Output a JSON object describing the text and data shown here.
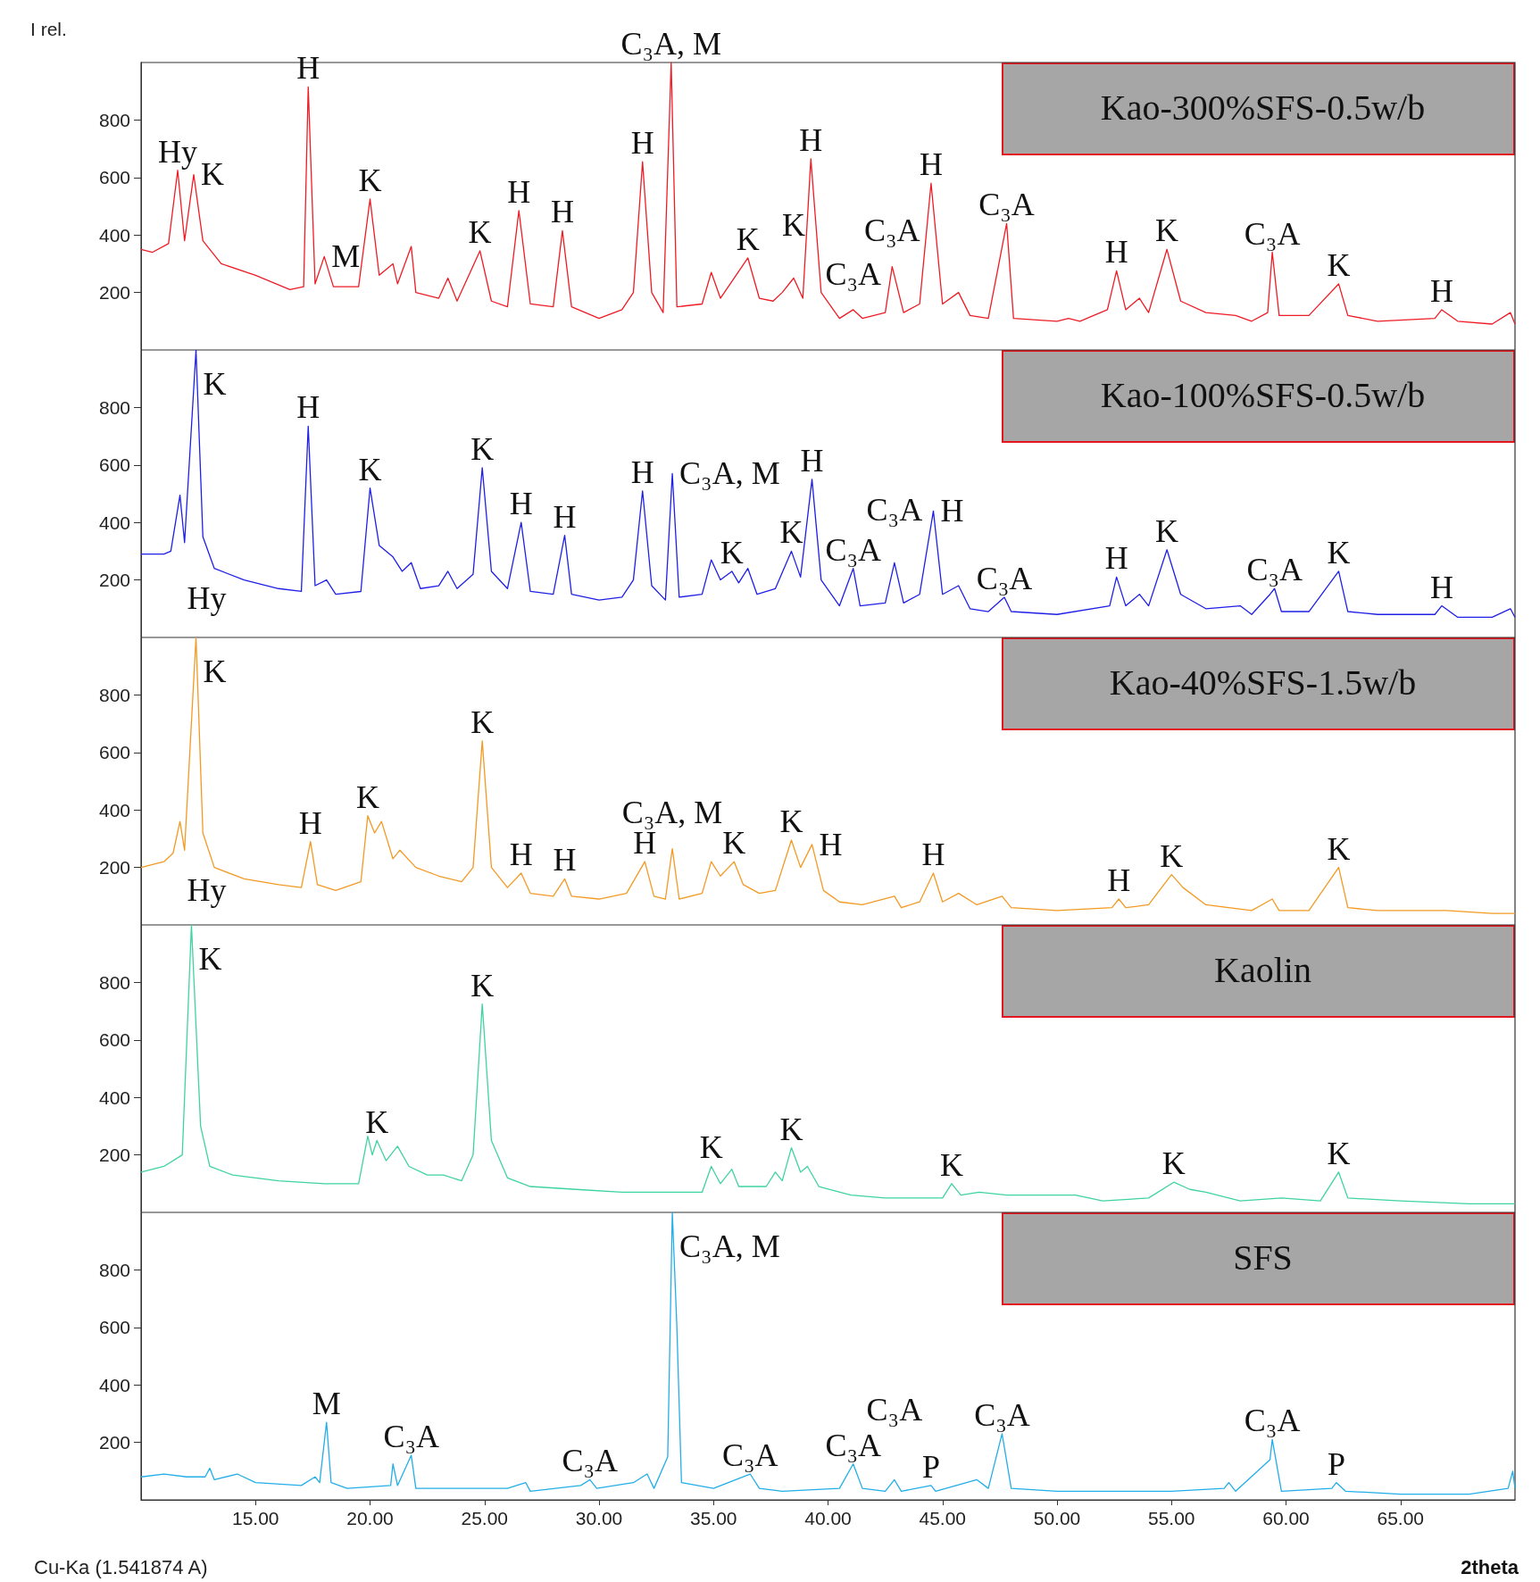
{
  "chart_data": [
    {
      "type": "line",
      "ylabel": "I rel.",
      "xlim": [
        10,
        70
      ],
      "ylim": [
        0,
        1000
      ],
      "yticks": [
        200,
        400,
        600,
        800
      ],
      "tick_labels": "y",
      "legend": "top right",
      "line_style": "solid",
      "series": [
        {
          "name": "Kao-300%SFS-0.5w/b",
          "color": "#ee1c25",
          "x": [
            10,
            10.5,
            11.2,
            11.6,
            11.9,
            12.3,
            12.7,
            13.5,
            15,
            16.5,
            17.1,
            17.3,
            17.6,
            18,
            18.4,
            19.5,
            20,
            20.4,
            21,
            21.2,
            21.8,
            22,
            23,
            23.4,
            23.8,
            24.8,
            25.3,
            26,
            26.5,
            27,
            28,
            28.4,
            28.8,
            30,
            31,
            31.5,
            31.9,
            32.3,
            32.8,
            33.15,
            33.4,
            34.5,
            34.9,
            35.3,
            36.5,
            37,
            37.6,
            38,
            38.5,
            38.9,
            39.25,
            39.7,
            40.5,
            41.1,
            41.5,
            42.5,
            42.8,
            43.3,
            44,
            44.5,
            45,
            45.7,
            46.2,
            47,
            47.8,
            48.1,
            50,
            50.5,
            51,
            52.2,
            52.6,
            53,
            53.6,
            54,
            54.8,
            55.4,
            56.5,
            57.8,
            58.5,
            59.2,
            59.4,
            59.7,
            61,
            62.3,
            62.7,
            64,
            66.5,
            66.8,
            67.5,
            69,
            69.8,
            70
          ],
          "values": [
            350,
            340,
            370,
            625,
            380,
            610,
            380,
            300,
            260,
            210,
            220,
            915,
            230,
            325,
            220,
            220,
            525,
            260,
            300,
            230,
            360,
            200,
            180,
            250,
            170,
            345,
            170,
            150,
            485,
            160,
            150,
            415,
            150,
            110,
            140,
            200,
            655,
            200,
            130,
            1000,
            150,
            160,
            270,
            180,
            320,
            180,
            170,
            200,
            250,
            180,
            665,
            200,
            110,
            140,
            110,
            130,
            290,
            130,
            160,
            580,
            160,
            200,
            120,
            110,
            440,
            110,
            100,
            110,
            100,
            140,
            275,
            140,
            180,
            130,
            350,
            170,
            130,
            120,
            100,
            130,
            340,
            120,
            120,
            230,
            120,
            100,
            110,
            140,
            100,
            90,
            130,
            90
          ]
        }
      ],
      "annotations": [
        {
          "text": "Hy",
          "x": 11.6,
          "y": 625
        },
        {
          "text": "K",
          "x": 12.3,
          "y": 610
        },
        {
          "text": "H",
          "x": 17.3,
          "y": 915
        },
        {
          "text": "M",
          "x": 18,
          "y": 325
        },
        {
          "text": "K",
          "x": 20,
          "y": 525
        },
        {
          "text": "K",
          "x": 24.8,
          "y": 345
        },
        {
          "text": "H",
          "x": 26.5,
          "y": 485
        },
        {
          "text": "H",
          "x": 28.4,
          "y": 415
        },
        {
          "text": "H",
          "x": 31.9,
          "y": 655
        },
        {
          "text": "C₃A, M",
          "x": 33.15,
          "y": 1000
        },
        {
          "text": "K",
          "x": 36.5,
          "y": 320
        },
        {
          "text": "K",
          "x": 38.5,
          "y": 250
        },
        {
          "text": "H",
          "x": 39.25,
          "y": 665
        },
        {
          "text": "C₃A",
          "x": 41.1,
          "y": 140
        },
        {
          "text": "C₃A",
          "x": 42.8,
          "y": 290
        },
        {
          "text": "H",
          "x": 44.5,
          "y": 580
        },
        {
          "text": "C₃A",
          "x": 47.8,
          "y": 440
        },
        {
          "text": "H",
          "x": 52.6,
          "y": 275
        },
        {
          "text": "K",
          "x": 54.8,
          "y": 350
        },
        {
          "text": "C₃A",
          "x": 59.4,
          "y": 340
        },
        {
          "text": "K",
          "x": 62.3,
          "y": 230
        },
        {
          "text": "H",
          "x": 66.8,
          "y": 140
        }
      ]
    },
    {
      "type": "line",
      "xlim": [
        10,
        70
      ],
      "ylim": [
        0,
        1000
      ],
      "yticks": [
        200,
        400,
        600,
        800
      ],
      "tick_labels": "y",
      "legend": "top right",
      "line_style": "solid",
      "series": [
        {
          "name": "Kao-100%SFS-0.5w/b",
          "color": "#1f1fe6",
          "x": [
            10,
            11,
            11.3,
            11.7,
            11.9,
            12.4,
            12.7,
            13.2,
            14.5,
            16,
            17,
            17.3,
            17.6,
            18.1,
            18.5,
            19.6,
            20,
            20.4,
            21,
            21.4,
            21.8,
            22.2,
            23,
            23.4,
            23.8,
            24.5,
            24.9,
            25.3,
            26,
            26.6,
            27,
            28,
            28.5,
            28.8,
            30,
            31,
            31.5,
            31.9,
            32.3,
            32.9,
            33.2,
            33.5,
            34.5,
            34.9,
            35.3,
            35.8,
            36.1,
            36.5,
            36.9,
            37.7,
            38.4,
            38.8,
            39.3,
            39.7,
            40.5,
            41.1,
            41.4,
            42.5,
            42.9,
            43.3,
            44,
            44.6,
            45,
            45.7,
            46.2,
            47,
            47.7,
            48,
            50,
            52.3,
            52.6,
            53,
            53.6,
            54,
            54.8,
            55.4,
            56.5,
            58,
            58.5,
            59.3,
            59.5,
            59.8,
            61,
            62.3,
            62.7,
            64,
            66.5,
            66.8,
            67.5,
            69,
            69.8,
            70
          ],
          "values": [
            290,
            290,
            300,
            495,
            330,
            1000,
            350,
            240,
            200,
            170,
            160,
            735,
            180,
            200,
            150,
            160,
            520,
            320,
            280,
            230,
            260,
            170,
            180,
            230,
            170,
            220,
            590,
            230,
            170,
            400,
            160,
            150,
            355,
            150,
            130,
            140,
            200,
            510,
            180,
            130,
            570,
            140,
            150,
            270,
            200,
            230,
            190,
            240,
            150,
            170,
            300,
            210,
            550,
            200,
            110,
            240,
            110,
            120,
            260,
            120,
            150,
            440,
            150,
            180,
            100,
            90,
            140,
            90,
            80,
            110,
            210,
            110,
            150,
            110,
            305,
            150,
            100,
            110,
            80,
            150,
            170,
            90,
            90,
            230,
            90,
            80,
            80,
            110,
            70,
            70,
            100,
            70
          ]
        }
      ],
      "annotations": [
        {
          "text": "Hy",
          "x": 11.7,
          "y": 495
        },
        {
          "text": "K",
          "x": 12.4,
          "y": 1000
        },
        {
          "text": "H",
          "x": 17.3,
          "y": 735
        },
        {
          "text": "K",
          "x": 20,
          "y": 520
        },
        {
          "text": "K",
          "x": 24.9,
          "y": 590
        },
        {
          "text": "H",
          "x": 26.6,
          "y": 400
        },
        {
          "text": "H",
          "x": 28.5,
          "y": 355
        },
        {
          "text": "H",
          "x": 31.9,
          "y": 510
        },
        {
          "text": "C₃A, M",
          "x": 33.2,
          "y": 570
        },
        {
          "text": "K",
          "x": 35.8,
          "y": 230
        },
        {
          "text": "K",
          "x": 38.4,
          "y": 300
        },
        {
          "text": "H",
          "x": 39.3,
          "y": 550
        },
        {
          "text": "C₃A",
          "x": 41.1,
          "y": 240
        },
        {
          "text": "C₃A",
          "x": 42.9,
          "y": 260
        },
        {
          "text": "H",
          "x": 44.6,
          "y": 440
        },
        {
          "text": "C₃A",
          "x": 47.7,
          "y": 140
        },
        {
          "text": "H",
          "x": 52.6,
          "y": 210
        },
        {
          "text": "K",
          "x": 54.8,
          "y": 305
        },
        {
          "text": "C₃A",
          "x": 59.5,
          "y": 170
        },
        {
          "text": "K",
          "x": 62.3,
          "y": 230
        },
        {
          "text": "H",
          "x": 66.8,
          "y": 110
        }
      ]
    },
    {
      "type": "line",
      "xlim": [
        10,
        70
      ],
      "ylim": [
        0,
        1000
      ],
      "yticks": [
        200,
        400,
        600,
        800
      ],
      "tick_labels": "y",
      "legend": "top right",
      "line_style": "solid",
      "series": [
        {
          "name": "Kao-40%SFS-1.5w/b",
          "color": "#f39a24",
          "x": [
            10,
            11,
            11.4,
            11.7,
            11.9,
            12.4,
            12.7,
            13.2,
            14.5,
            16,
            17,
            17.4,
            17.7,
            18.5,
            19.6,
            19.9,
            20.2,
            20.5,
            21,
            21.3,
            22,
            23,
            24,
            24.5,
            24.9,
            25.3,
            26,
            26.6,
            27,
            28,
            28.5,
            28.8,
            30,
            31.2,
            32,
            32.4,
            32.9,
            33.2,
            33.5,
            34.5,
            34.9,
            35.3,
            35.9,
            36.3,
            37,
            37.7,
            38.4,
            38.8,
            39.3,
            39.8,
            40.5,
            41.5,
            42.9,
            43.2,
            44,
            44.6,
            45,
            45.7,
            46.5,
            47.6,
            48,
            50,
            52.4,
            52.7,
            53,
            54,
            55,
            55.5,
            56.5,
            58.5,
            59.4,
            59.7,
            61,
            62.3,
            62.7,
            64,
            67,
            69,
            70
          ],
          "values": [
            200,
            220,
            250,
            360,
            260,
            1000,
            320,
            200,
            160,
            140,
            130,
            290,
            140,
            120,
            150,
            380,
            320,
            360,
            230,
            260,
            200,
            170,
            150,
            200,
            640,
            200,
            130,
            180,
            110,
            100,
            160,
            100,
            90,
            110,
            220,
            100,
            90,
            265,
            90,
            110,
            220,
            170,
            220,
            140,
            110,
            120,
            295,
            200,
            280,
            120,
            80,
            70,
            100,
            60,
            80,
            180,
            80,
            110,
            70,
            100,
            60,
            50,
            60,
            90,
            60,
            70,
            175,
            130,
            70,
            50,
            90,
            50,
            50,
            200,
            60,
            50,
            50,
            40,
            40
          ]
        }
      ],
      "annotations": [
        {
          "text": "Hy",
          "x": 11.7,
          "y": 360
        },
        {
          "text": "K",
          "x": 12.4,
          "y": 1000
        },
        {
          "text": "H",
          "x": 17.4,
          "y": 290
        },
        {
          "text": "K",
          "x": 19.9,
          "y": 380
        },
        {
          "text": "K",
          "x": 24.9,
          "y": 640
        },
        {
          "text": "H",
          "x": 26.6,
          "y": 180
        },
        {
          "text": "H",
          "x": 28.5,
          "y": 160
        },
        {
          "text": "H",
          "x": 32,
          "y": 220
        },
        {
          "text": "C₃A, M",
          "x": 33.2,
          "y": 265
        },
        {
          "text": "K",
          "x": 35.9,
          "y": 220
        },
        {
          "text": "K",
          "x": 38.4,
          "y": 295
        },
        {
          "text": "H",
          "x": 39.3,
          "y": 280
        },
        {
          "text": "H",
          "x": 44.6,
          "y": 180
        },
        {
          "text": "H",
          "x": 52.7,
          "y": 90
        },
        {
          "text": "K",
          "x": 55,
          "y": 175
        },
        {
          "text": "K",
          "x": 62.3,
          "y": 200
        }
      ]
    },
    {
      "type": "line",
      "xlim": [
        10,
        70
      ],
      "ylim": [
        0,
        1000
      ],
      "yticks": [
        200,
        400,
        600,
        800
      ],
      "tick_labels": "y",
      "legend": "top right",
      "line_style": "solid",
      "series": [
        {
          "name": "Kaolin",
          "color": "#3fd3a0",
          "x": [
            10,
            11,
            11.8,
            12.2,
            12.6,
            13,
            14,
            16,
            18,
            19.5,
            19.9,
            20.1,
            20.3,
            20.7,
            21.2,
            21.7,
            22.5,
            23.2,
            24,
            24.5,
            24.9,
            25.3,
            26,
            27,
            29,
            31,
            33,
            34.5,
            34.9,
            35.3,
            35.8,
            36.1,
            37.3,
            37.7,
            38,
            38.4,
            38.8,
            39.1,
            39.6,
            41,
            42.5,
            45,
            45.4,
            45.8,
            46.6,
            47.8,
            50.8,
            52,
            54,
            55.1,
            55.8,
            56.5,
            58,
            59.8,
            61.5,
            62.3,
            62.7,
            65,
            68,
            70
          ],
          "values": [
            140,
            160,
            200,
            1000,
            300,
            160,
            130,
            110,
            100,
            100,
            265,
            200,
            250,
            180,
            230,
            160,
            130,
            130,
            110,
            200,
            725,
            250,
            120,
            90,
            80,
            70,
            70,
            70,
            160,
            100,
            150,
            90,
            90,
            140,
            110,
            225,
            140,
            160,
            90,
            60,
            50,
            50,
            100,
            60,
            70,
            60,
            60,
            40,
            50,
            105,
            80,
            70,
            40,
            50,
            40,
            140,
            50,
            40,
            30,
            30
          ]
        }
      ],
      "annotations": [
        {
          "text": "K",
          "x": 12.2,
          "y": 1000
        },
        {
          "text": "K",
          "x": 20.3,
          "y": 250
        },
        {
          "text": "K",
          "x": 24.9,
          "y": 725
        },
        {
          "text": "K",
          "x": 34.9,
          "y": 160
        },
        {
          "text": "K",
          "x": 38.4,
          "y": 225
        },
        {
          "text": "K",
          "x": 45.4,
          "y": 100
        },
        {
          "text": "K",
          "x": 55.1,
          "y": 105
        },
        {
          "text": "K",
          "x": 62.3,
          "y": 140
        }
      ]
    },
    {
      "type": "line",
      "xlabel": "2theta",
      "xlim": [
        10,
        70
      ],
      "ylim": [
        0,
        1000
      ],
      "yticks": [
        200,
        400,
        600,
        800
      ],
      "xticks": [
        {
          "value": 15,
          "label": "15.00"
        },
        {
          "value": 20,
          "label": "20.00"
        },
        {
          "value": 25,
          "label": "25.00"
        },
        {
          "value": 30,
          "label": "30.00"
        },
        {
          "value": 35,
          "label": "35.00"
        },
        {
          "value": 40,
          "label": "40.00"
        },
        {
          "value": 45,
          "label": "45.00"
        },
        {
          "value": 50,
          "label": "50.00"
        },
        {
          "value": 55,
          "label": "55.00"
        },
        {
          "value": 60,
          "label": "60.00"
        },
        {
          "value": 65,
          "label": "65.00"
        }
      ],
      "legend": "top right",
      "line_style": "solid",
      "series": [
        {
          "name": "SFS",
          "color": "#22aee8",
          "x": [
            10,
            11,
            12,
            12.8,
            13,
            13.2,
            14.2,
            15,
            17,
            17.6,
            17.8,
            18.1,
            18.3,
            19,
            20.9,
            21,
            21.2,
            21.8,
            22,
            24,
            26,
            26.8,
            27,
            29.2,
            29.6,
            29.9,
            31.5,
            32.1,
            32.4,
            33,
            33.2,
            33.4,
            33.6,
            35,
            36.6,
            37,
            38,
            40.5,
            41.1,
            41.5,
            42.5,
            42.9,
            43.2,
            44.5,
            44.7,
            46.5,
            47,
            47.6,
            48,
            50,
            52,
            55,
            57.3,
            57.5,
            57.8,
            59.3,
            59.4,
            59.8,
            62,
            62.2,
            62.6,
            65,
            68,
            69.7,
            69.9,
            70
          ],
          "values": [
            80,
            90,
            80,
            80,
            110,
            70,
            90,
            60,
            50,
            80,
            60,
            270,
            60,
            40,
            50,
            125,
            50,
            155,
            40,
            40,
            40,
            60,
            30,
            50,
            70,
            40,
            60,
            90,
            40,
            150,
            1000,
            600,
            60,
            40,
            90,
            40,
            30,
            40,
            125,
            40,
            30,
            70,
            30,
            50,
            30,
            70,
            40,
            230,
            40,
            30,
            30,
            30,
            40,
            60,
            30,
            140,
            210,
            30,
            40,
            60,
            30,
            20,
            20,
            40,
            100,
            40
          ]
        }
      ],
      "annotations": [
        "Cu-Ka (1.541874 A)",
        {
          "text": "C₃A, M",
          "x": 33.2,
          "y": 1000
        },
        {
          "text": "M",
          "x": 18.1,
          "y": 270
        },
        {
          "text": "C₃A",
          "x": 21.8,
          "y": 155
        },
        {
          "text": "C₃A",
          "x": 29.6,
          "y": 70
        },
        {
          "text": "C₃A",
          "x": 36.6,
          "y": 90
        },
        {
          "text": "C₃A",
          "x": 41.1,
          "y": 125
        },
        {
          "text": "C₃A",
          "x": 42.9,
          "y": 70
        },
        {
          "text": "P",
          "x": 44.5,
          "y": 50
        },
        {
          "text": "C₃A",
          "x": 47.6,
          "y": 230
        },
        {
          "text": "C₃A",
          "x": 59.4,
          "y": 210
        },
        {
          "text": "P",
          "x": 62.2,
          "y": 60
        }
      ]
    }
  ]
}
